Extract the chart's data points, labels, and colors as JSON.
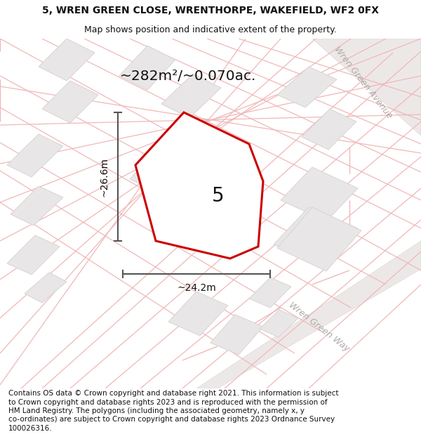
{
  "title_line1": "5, WREN GREEN CLOSE, WRENTHORPE, WAKEFIELD, WF2 0FX",
  "title_line2": "Map shows position and indicative extent of the property.",
  "area_text": "~282m²/~0.070ac.",
  "label_number": "5",
  "dim_vertical": "~26.6m",
  "dim_horizontal": "~24.2m",
  "street_avenue": "Wren Green Avenue",
  "street_way": "Wren Green Way",
  "footer": "Contains OS data © Crown copyright and database right 2021. This information is subject to Crown copyright and database rights 2023 and is reproduced with the permission of HM Land Registry. The polygons (including the associated geometry, namely x, y co-ordinates) are subject to Crown copyright and database rights 2023 Ordnance Survey 100026316.",
  "map_bg": "#f7f5f5",
  "plot_outline_color": "#cc0000",
  "street_line_color": "#f0b8b8",
  "street_line_color2": "#e8c8c8",
  "building_fill": "#e8e6e6",
  "building_edge": "#d8d4d4",
  "road_fill": "#ede8e8",
  "road_edge": "#e0d8d8",
  "title_fontsize": 10,
  "subtitle_fontsize": 9,
  "footer_fontsize": 7.5,
  "street_label_color": "#b0aaaa"
}
